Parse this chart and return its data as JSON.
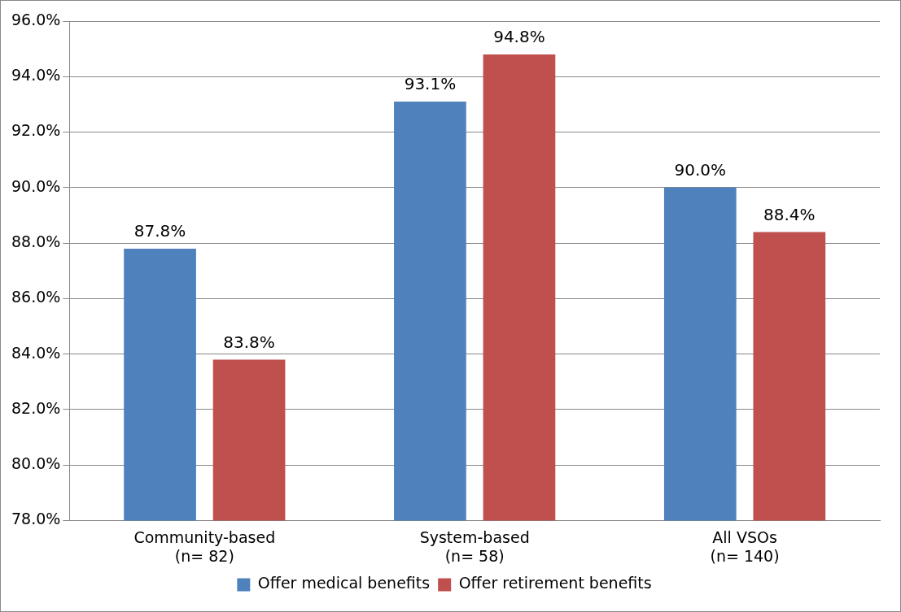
{
  "chart_data": {
    "type": "bar",
    "categories": [
      "Community-based\n(n= 82)",
      "System-based\n(n= 58)",
      "All VSOs\n(n= 140)"
    ],
    "series": [
      {
        "name": "Offer medical benefits",
        "color": "#4f81bd",
        "values": [
          87.8,
          93.1,
          90.0
        ],
        "value_labels": [
          "87.8%",
          "93.1%",
          "90.0%"
        ]
      },
      {
        "name": "Offer retirement benefits",
        "color": "#c0504d",
        "values": [
          83.8,
          94.8,
          88.4
        ],
        "value_labels": [
          "83.8%",
          "94.8%",
          "88.4%"
        ]
      }
    ],
    "ylim": [
      78,
      96
    ],
    "yticks": [
      {
        "value": 78,
        "label": "78.0%"
      },
      {
        "value": 80,
        "label": "80.0%"
      },
      {
        "value": 82,
        "label": "82.0%"
      },
      {
        "value": 84,
        "label": "84.0%"
      },
      {
        "value": 86,
        "label": "86.0%"
      },
      {
        "value": 88,
        "label": "88.0%"
      },
      {
        "value": 90,
        "label": "90.0%"
      },
      {
        "value": 92,
        "label": "92.0%"
      },
      {
        "value": 94,
        "label": "94.0%"
      },
      {
        "value": 96,
        "label": "96.0%"
      }
    ],
    "grid": "y",
    "legend": "bottom"
  }
}
